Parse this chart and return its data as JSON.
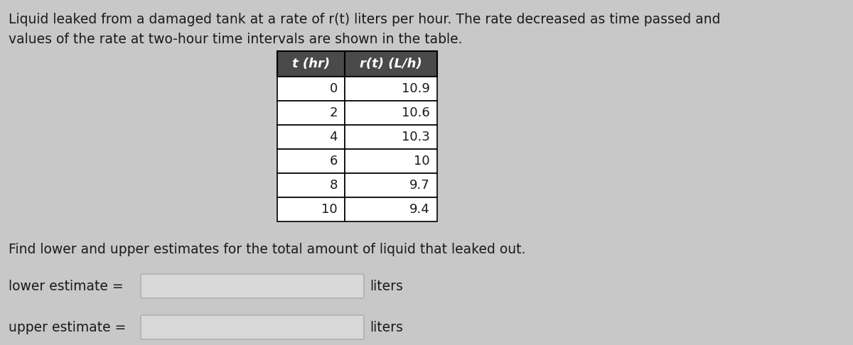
{
  "title_line1": "Liquid leaked from a damaged tank at a rate of r(t) liters per hour. The rate decreased as time passed and",
  "title_line2": "values of the rate at two-hour time intervals are shown in the table.",
  "table_headers": [
    "t (hr)",
    "r(t) (L/h)"
  ],
  "table_data": [
    [
      0,
      10.9
    ],
    [
      2,
      10.6
    ],
    [
      4,
      10.3
    ],
    [
      6,
      10
    ],
    [
      8,
      9.7
    ],
    [
      10,
      9.4
    ]
  ],
  "question_text": "Find lower and upper estimates for the total amount of liquid that leaked out.",
  "lower_label": "lower estimate =",
  "upper_label": "upper estimate =",
  "units": "liters",
  "bg_color": "#c8c8c8",
  "table_header_bg": "#4a4a4a",
  "table_header_text": "#ffffff",
  "table_row_bg": "#ffffff",
  "table_border": "#000000",
  "text_color": "#1a1a1a",
  "input_box_bg": "#d8d8d8",
  "input_box_border": "#aaaaaa",
  "font_size_title": 13.5,
  "font_size_table_header": 13,
  "font_size_table_data": 13,
  "font_size_question": 13.5,
  "font_size_labels": 13.5
}
